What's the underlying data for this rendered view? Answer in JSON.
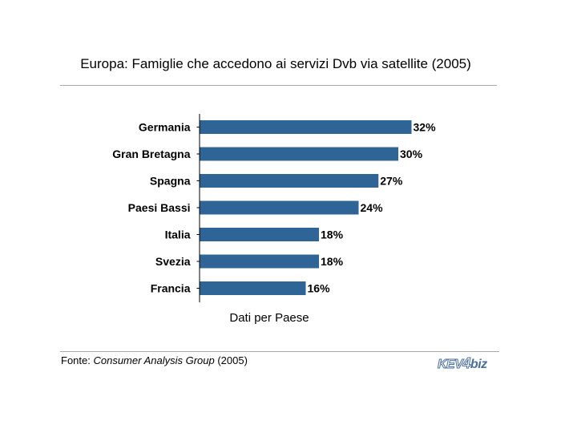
{
  "chart_data": {
    "type": "bar",
    "orientation": "horizontal",
    "title": "Europa: Famiglie che accedono ai servizi Dvb via satellite  (2005)",
    "xlabel": "Dati per Paese",
    "categories": [
      "Germania",
      "Gran Bretagna",
      "Spagna",
      "Paesi Bassi",
      "Italia",
      "Svezia",
      "Francia"
    ],
    "values": [
      32,
      30,
      27,
      24,
      18,
      18,
      16
    ],
    "value_labels": [
      "32%",
      "30%",
      "27%",
      "24%",
      "18%",
      "18%",
      "16%"
    ],
    "unit": "%",
    "xlim": [
      0,
      35
    ],
    "grid": false,
    "legend": "none",
    "bar_color": "#2f6596"
  },
  "source": {
    "prefix": "Fonte: ",
    "name": "Consumer Analysis Group",
    "suffix": " (2005)"
  },
  "brand": {
    "part1": "KEV",
    "part2": "4",
    "part3": "biz"
  }
}
